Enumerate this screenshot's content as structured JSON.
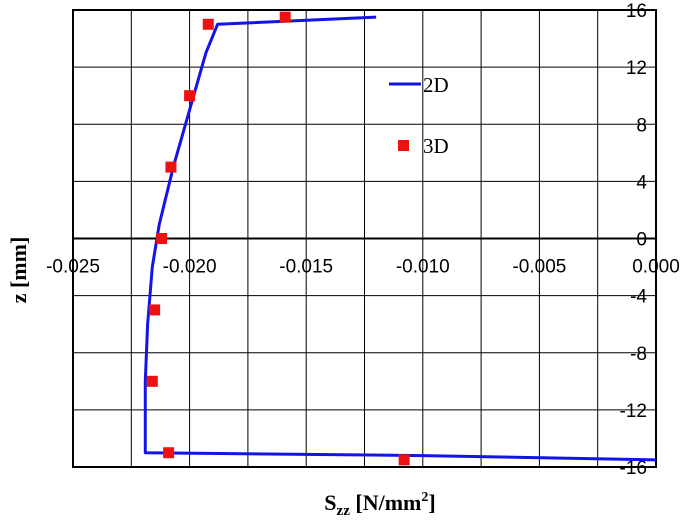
{
  "chart_data": {
    "type": "line",
    "xlabel": "S",
    "xlabel_sub": "zz",
    "xlabel_units": " [N/mm",
    "xlabel_sup": "2",
    "xlabel_close": "]",
    "ylabel": "z [mm]",
    "xlim": [
      -0.025,
      0.0
    ],
    "ylim": [
      -16,
      16
    ],
    "xticks": [
      -0.025,
      -0.02,
      -0.015,
      -0.01,
      -0.005,
      0.0
    ],
    "xtick_labels": [
      "-0.025",
      "-0.020",
      "-0.015",
      "-0.010",
      "-0.005",
      "0.000"
    ],
    "yticks": [
      -16,
      -12,
      -8,
      -4,
      0,
      4,
      8,
      12,
      16
    ],
    "ytick_labels": [
      "-16",
      "-12",
      "-8",
      "-4",
      "0",
      "4",
      "8",
      "12",
      "16"
    ],
    "grid": true,
    "legend_position": "upper-right-inside",
    "series": [
      {
        "name": "2D",
        "style": "line",
        "color": "#1414e6",
        "x": [
          -0.012,
          -0.0188,
          -0.0193,
          -0.02,
          -0.0207,
          -0.0213,
          -0.0216,
          -0.0218,
          -0.0219,
          -0.0219,
          -0.0219,
          -0.01,
          0.0
        ],
        "y": [
          15.5,
          15.0,
          13.0,
          9.0,
          5.0,
          1.0,
          -2.0,
          -6.0,
          -10.0,
          -14.0,
          -15.0,
          -15.2,
          -15.5
        ]
      },
      {
        "name": "3D",
        "style": "markers",
        "color": "#ee1111",
        "x": [
          -0.0159,
          -0.0192,
          -0.02,
          -0.0208,
          -0.0212,
          -0.0215,
          -0.0216,
          -0.0209,
          -0.0108
        ],
        "y": [
          15.5,
          15.0,
          10.0,
          5.0,
          0.0,
          -5.0,
          -10.0,
          -15.0,
          -15.5
        ]
      }
    ]
  }
}
